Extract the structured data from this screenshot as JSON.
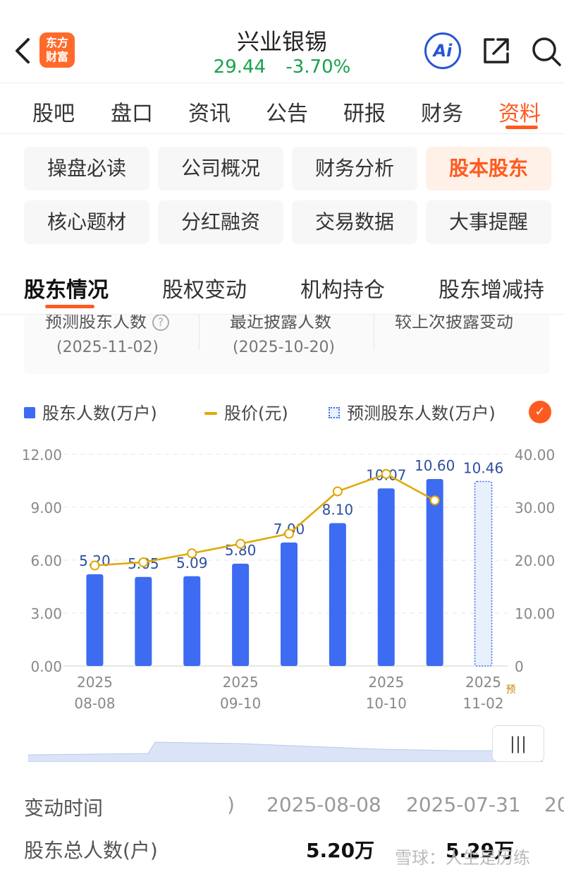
{
  "header": {
    "logo_text_line1": "东方",
    "logo_text_line2": "财富",
    "title": "兴业银锡",
    "price": "29.44",
    "change_pct": "-3.70%",
    "ai_label": "Ai"
  },
  "main_tabs": [
    "股吧",
    "盘口",
    "资讯",
    "公告",
    "研报",
    "财务",
    "资料"
  ],
  "sub_grid": [
    "操盘必读",
    "公司概况",
    "财务分析",
    "股本股东",
    "核心题材",
    "分红融资",
    "交易数据",
    "大事提醒"
  ],
  "section_tabs": [
    "股东情况",
    "股权变动",
    "机构持仓",
    "股东增减持"
  ],
  "info_card": {
    "col1_label": "预测股东人数",
    "col1_date": "(2025-11-02)",
    "col2_label": "最近披露人数",
    "col2_date": "(2025-10-20)",
    "col3_label": "较上次披露变动"
  },
  "legend": {
    "bar": "股东人数(万户)",
    "line": "股价(元)",
    "predicted": "预测股东人数(万户)"
  },
  "chart_data": {
    "type": "bar",
    "categories": [
      "2025-08-08",
      "",
      "",
      "2025-09-10",
      "",
      "",
      "2025-10-10",
      "",
      "2025-11-02"
    ],
    "x_tick_labels": [
      {
        "index": 0,
        "year": "2025",
        "md": "08-08"
      },
      {
        "index": 3,
        "year": "2025",
        "md": "09-10"
      },
      {
        "index": 6,
        "year": "2025",
        "md": "10-10"
      },
      {
        "index": 8,
        "year": "2025",
        "md": "11-02"
      }
    ],
    "predicted_marker": "预",
    "series": [
      {
        "name": "股东人数(万户)",
        "type": "bar",
        "values": [
          5.2,
          5.05,
          5.09,
          5.8,
          7.0,
          8.1,
          10.07,
          10.6,
          null
        ],
        "labels": [
          "5.20",
          "5.05",
          "5.09",
          "5.80",
          "7.00",
          "8.10",
          "10.07",
          "10.60",
          ""
        ]
      },
      {
        "name": "预测股东人数(万户)",
        "type": "bar",
        "values": [
          null,
          null,
          null,
          null,
          null,
          null,
          null,
          null,
          10.46
        ],
        "labels": [
          "",
          "",
          "",
          "",
          "",
          "",
          "",
          "",
          "10.46"
        ]
      },
      {
        "name": "股价(元)",
        "type": "line",
        "axis": "right",
        "values": [
          19.0,
          19.6,
          21.3,
          23.1,
          25.0,
          33.0,
          36.3,
          31.3,
          null
        ]
      }
    ],
    "left_axis": {
      "ticks": [
        "0.00",
        "3.00",
        "6.00",
        "9.00",
        "12.00"
      ],
      "ylim": [
        0,
        12
      ]
    },
    "right_axis": {
      "ticks": [
        "0",
        "10.00",
        "20.00",
        "30.00",
        "40.00"
      ],
      "ylim": [
        0,
        40
      ]
    },
    "grid": true
  },
  "rows": [
    {
      "label": "变动时间",
      "values": [
        ")",
        "2025-08-08",
        "2025-07-31",
        "20"
      ]
    },
    {
      "label": "股东总人数(户)",
      "values": [
        "5.20万",
        "5.29万"
      ]
    }
  ],
  "watermark": "雪球：人生是历练"
}
